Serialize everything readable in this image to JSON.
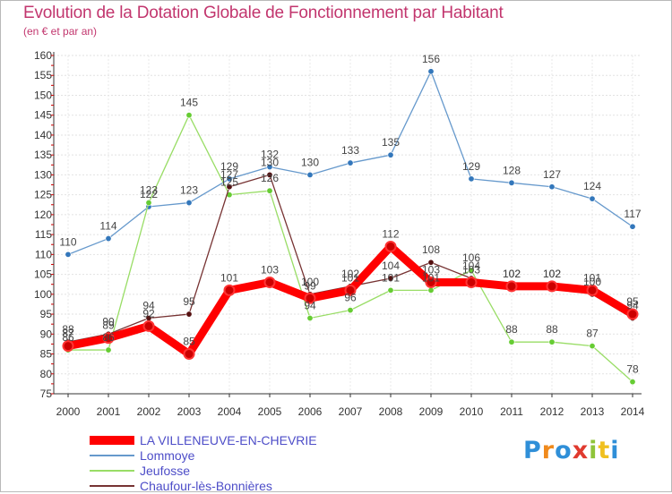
{
  "title": "Evolution de la Dotation Globale de Fonctionnement par Habitant",
  "subtitle": "(en € et par an)",
  "logo": "Proxiti",
  "chart_data": {
    "type": "line",
    "title": "Evolution de la Dotation Globale de Fonctionnement par Habitant",
    "subtitle": "(en € et par an)",
    "xlabel": "",
    "ylabel": "",
    "ylim": [
      75,
      160
    ],
    "yticks": [
      75,
      80,
      85,
      90,
      95,
      100,
      105,
      110,
      115,
      120,
      125,
      130,
      135,
      140,
      145,
      150,
      155,
      160
    ],
    "categories": [
      "2000",
      "2001",
      "2002",
      "2003",
      "2004",
      "2005",
      "2006",
      "2007",
      "2008",
      "2009",
      "2010",
      "2011",
      "2012",
      "2013",
      "2014"
    ],
    "legend_position": "bottom-left",
    "series": [
      {
        "name": "LA VILLENEUVE-EN-CHEVRIE",
        "color": "#ff0000",
        "marker": "#cc0000",
        "width": 9,
        "values": [
          87,
          89,
          92,
          85,
          101,
          103,
          99,
          101,
          112,
          103,
          103,
          102,
          102,
          101,
          95
        ]
      },
      {
        "name": "Lommoye",
        "color": "#6699cc",
        "marker": "#3377bb",
        "width": 1.3,
        "values": [
          110,
          114,
          122,
          123,
          129,
          132,
          130,
          133,
          135,
          156,
          129,
          128,
          127,
          124,
          117
        ]
      },
      {
        "name": "Jeufosse",
        "color": "#99dd66",
        "marker": "#66cc33",
        "width": 1.3,
        "values": [
          86,
          86,
          123,
          145,
          125,
          126,
          94,
          96,
          101,
          101,
          106,
          88,
          88,
          87,
          78
        ]
      },
      {
        "name": "Chaufour-lès-Bonnières",
        "color": "#773333",
        "marker": "#551111",
        "width": 1.3,
        "values": [
          88,
          90,
          94,
          95,
          127,
          130,
          100,
          102,
          104,
          108,
          104,
          102,
          102,
          100,
          94
        ]
      }
    ]
  }
}
